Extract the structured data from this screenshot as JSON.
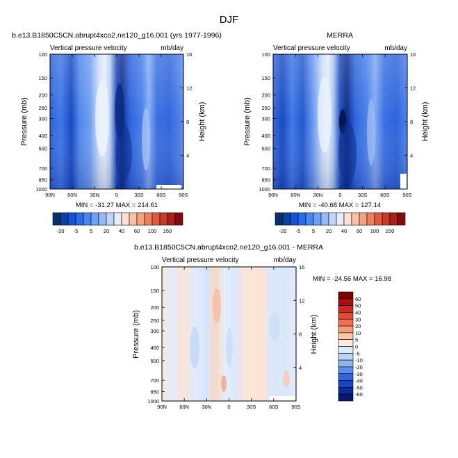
{
  "figure_title": "DJF",
  "chart_data": [
    {
      "type": "heatmap",
      "title": "b.e13.B1850C5CN.abrupt4xco2.ne120_g16.001 (yrs 1977-1996)",
      "left_string": "Vertical pressure velocity",
      "right_string": "mb/day",
      "xlabel": "",
      "ylabel": "Pressure (mb)",
      "ylabel_right": "Height (km)",
      "x_ticks": [
        "90N",
        "60N",
        "30N",
        "0",
        "30S",
        "60S",
        "90S"
      ],
      "y_ticks": [
        100,
        150,
        200,
        250,
        300,
        400,
        500,
        700,
        850,
        1000
      ],
      "y_right_ticks": [
        4,
        8,
        12,
        16
      ],
      "min_max_text": "MIN = -31.27   MAX = 214.61",
      "min": -31.27,
      "max": 214.61,
      "colorbar_labels": [
        "-20",
        "-5",
        "5",
        "20",
        "40",
        "60",
        "100",
        "150"
      ]
    },
    {
      "type": "heatmap",
      "title": "MERRA",
      "left_string": "Vertical pressure velocity",
      "right_string": "mb/day",
      "xlabel": "",
      "ylabel": "Pressure (mb)",
      "ylabel_right": "Height (km)",
      "x_ticks": [
        "90N",
        "60N",
        "30N",
        "0",
        "30S",
        "60S",
        "90S"
      ],
      "y_ticks": [
        100,
        150,
        200,
        250,
        300,
        400,
        500,
        700,
        850,
        1000
      ],
      "y_right_ticks": [
        4,
        8,
        12,
        16
      ],
      "min_max_text": "MIN = -40.68   MAX = 127.14",
      "min": -40.68,
      "max": 127.14,
      "colorbar_labels": [
        "-20",
        "-5",
        "5",
        "20",
        "40",
        "60",
        "100",
        "150"
      ]
    },
    {
      "type": "heatmap",
      "title": "b.e13.B1850C5CN.abrupt4xco2.ne120_g16.001 - MERRA",
      "left_string": "Vertical pressure velocity",
      "right_string": "mb/day",
      "xlabel": "",
      "ylabel": "Pressure (mb)",
      "ylabel_right": "Height (km)",
      "x_ticks": [
        "90N",
        "60N",
        "30N",
        "0",
        "30S",
        "60S",
        "90S"
      ],
      "y_ticks": [
        100,
        150,
        200,
        250,
        300,
        400,
        500,
        700,
        850,
        1000
      ],
      "y_right_ticks": [
        4,
        8,
        12,
        16
      ],
      "min_max_text": "MIN = -24.56   MAX =  16.98",
      "min": -24.56,
      "max": 16.98,
      "colorbar_labels": [
        "60",
        "50",
        "40",
        "30",
        "20",
        "10",
        "5",
        "0",
        "-5",
        "-10",
        "-20",
        "-30",
        "-40",
        "-50",
        "-60"
      ]
    }
  ],
  "colors": {
    "seq_colorbar": [
      "#08306b",
      "#0b3fa0",
      "#1652d1",
      "#2c6be8",
      "#4a86ef",
      "#6fa0f2",
      "#97baf4",
      "#c3d6f6",
      "#e5eefa",
      "#fde0d2",
      "#f9c1a8",
      "#f4a184",
      "#ec7f60",
      "#dc5a3e",
      "#c63a28",
      "#a8211a",
      "#7f0d0d"
    ],
    "div_colorbar": [
      "#7f0000",
      "#a50f15",
      "#cb2a20",
      "#e34a33",
      "#f2714e",
      "#f89a76",
      "#fcc4a8",
      "#fde8dc",
      "#dceaf9",
      "#b9d3f4",
      "#8fb5ef",
      "#5d8ee8",
      "#3366dd",
      "#1546c4",
      "#0a2b97",
      "#06196a"
    ]
  }
}
